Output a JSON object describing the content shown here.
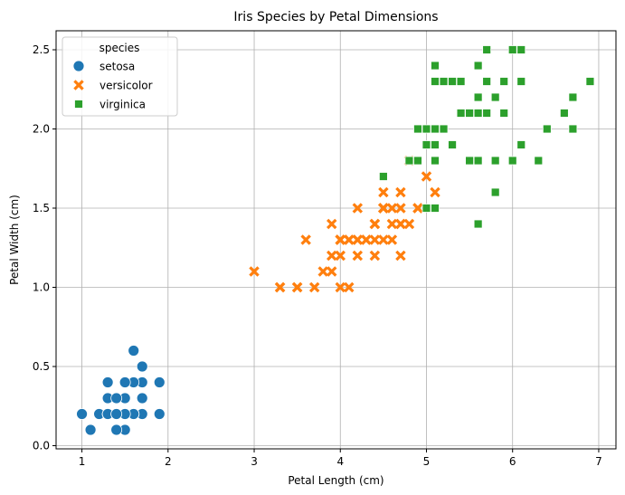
{
  "chart_data": {
    "type": "scatter",
    "title": "Iris Species by Petal Dimensions",
    "xlabel": "Petal Length (cm)",
    "ylabel": "Petal Width (cm)",
    "xlim": [
      0.7,
      7.2
    ],
    "ylim": [
      -0.02,
      2.62
    ],
    "xticks": [
      1,
      2,
      3,
      4,
      5,
      6,
      7
    ],
    "yticks": [
      0.0,
      0.5,
      1.0,
      1.5,
      2.0,
      2.5
    ],
    "grid": true,
    "legend": {
      "title": "species",
      "placement": "top-left"
    },
    "series": [
      {
        "name": "setosa",
        "marker": "circle",
        "color": "#1f77b4",
        "points": [
          [
            1.4,
            0.2
          ],
          [
            1.4,
            0.2
          ],
          [
            1.3,
            0.2
          ],
          [
            1.5,
            0.2
          ],
          [
            1.4,
            0.2
          ],
          [
            1.7,
            0.4
          ],
          [
            1.4,
            0.3
          ],
          [
            1.5,
            0.2
          ],
          [
            1.4,
            0.2
          ],
          [
            1.5,
            0.1
          ],
          [
            1.5,
            0.2
          ],
          [
            1.6,
            0.2
          ],
          [
            1.4,
            0.1
          ],
          [
            1.1,
            0.1
          ],
          [
            1.2,
            0.2
          ],
          [
            1.5,
            0.4
          ],
          [
            1.3,
            0.4
          ],
          [
            1.4,
            0.3
          ],
          [
            1.7,
            0.3
          ],
          [
            1.5,
            0.3
          ],
          [
            1.7,
            0.2
          ],
          [
            1.5,
            0.4
          ],
          [
            1.0,
            0.2
          ],
          [
            1.7,
            0.5
          ],
          [
            1.9,
            0.2
          ],
          [
            1.6,
            0.2
          ],
          [
            1.6,
            0.4
          ],
          [
            1.5,
            0.2
          ],
          [
            1.4,
            0.2
          ],
          [
            1.6,
            0.2
          ],
          [
            1.6,
            0.2
          ],
          [
            1.5,
            0.4
          ],
          [
            1.5,
            0.1
          ],
          [
            1.4,
            0.2
          ],
          [
            1.5,
            0.2
          ],
          [
            1.2,
            0.2
          ],
          [
            1.3,
            0.2
          ],
          [
            1.4,
            0.1
          ],
          [
            1.3,
            0.2
          ],
          [
            1.5,
            0.2
          ],
          [
            1.3,
            0.3
          ],
          [
            1.3,
            0.3
          ],
          [
            1.3,
            0.2
          ],
          [
            1.6,
            0.6
          ],
          [
            1.9,
            0.4
          ],
          [
            1.4,
            0.3
          ],
          [
            1.6,
            0.2
          ],
          [
            1.4,
            0.2
          ],
          [
            1.5,
            0.2
          ],
          [
            1.4,
            0.2
          ]
        ]
      },
      {
        "name": "versicolor",
        "marker": "x",
        "color": "#ff7f0e",
        "points": [
          [
            4.7,
            1.4
          ],
          [
            4.5,
            1.5
          ],
          [
            4.9,
            1.5
          ],
          [
            4.0,
            1.3
          ],
          [
            4.6,
            1.5
          ],
          [
            4.5,
            1.3
          ],
          [
            4.7,
            1.6
          ],
          [
            3.3,
            1.0
          ],
          [
            4.6,
            1.3
          ],
          [
            3.9,
            1.4
          ],
          [
            3.5,
            1.0
          ],
          [
            4.2,
            1.5
          ],
          [
            4.0,
            1.0
          ],
          [
            4.7,
            1.4
          ],
          [
            3.6,
            1.3
          ],
          [
            4.4,
            1.4
          ],
          [
            4.5,
            1.5
          ],
          [
            4.1,
            1.0
          ],
          [
            4.5,
            1.5
          ],
          [
            3.9,
            1.1
          ],
          [
            4.8,
            1.8
          ],
          [
            4.0,
            1.3
          ],
          [
            4.9,
            1.5
          ],
          [
            4.7,
            1.2
          ],
          [
            4.3,
            1.3
          ],
          [
            4.4,
            1.4
          ],
          [
            4.8,
            1.4
          ],
          [
            5.0,
            1.7
          ],
          [
            4.5,
            1.5
          ],
          [
            3.5,
            1.0
          ],
          [
            3.8,
            1.1
          ],
          [
            3.7,
            1.0
          ],
          [
            3.9,
            1.2
          ],
          [
            5.1,
            1.6
          ],
          [
            4.5,
            1.5
          ],
          [
            4.5,
            1.6
          ],
          [
            4.7,
            1.5
          ],
          [
            4.4,
            1.3
          ],
          [
            4.1,
            1.3
          ],
          [
            4.0,
            1.3
          ],
          [
            4.4,
            1.2
          ],
          [
            4.6,
            1.4
          ],
          [
            4.0,
            1.2
          ],
          [
            3.3,
            1.0
          ],
          [
            4.2,
            1.3
          ],
          [
            4.2,
            1.2
          ],
          [
            4.2,
            1.3
          ],
          [
            4.3,
            1.3
          ],
          [
            3.0,
            1.1
          ],
          [
            4.1,
            1.3
          ]
        ]
      },
      {
        "name": "virginica",
        "marker": "square",
        "color": "#2ca02c",
        "points": [
          [
            6.0,
            2.5
          ],
          [
            5.1,
            1.9
          ],
          [
            5.9,
            2.1
          ],
          [
            5.6,
            1.8
          ],
          [
            5.8,
            2.2
          ],
          [
            6.6,
            2.1
          ],
          [
            4.5,
            1.7
          ],
          [
            6.3,
            1.8
          ],
          [
            5.8,
            1.8
          ],
          [
            6.1,
            2.5
          ],
          [
            5.1,
            2.0
          ],
          [
            5.3,
            1.9
          ],
          [
            5.5,
            2.1
          ],
          [
            5.0,
            2.0
          ],
          [
            5.1,
            2.4
          ],
          [
            5.3,
            2.3
          ],
          [
            5.5,
            1.8
          ],
          [
            6.7,
            2.2
          ],
          [
            6.9,
            2.3
          ],
          [
            5.0,
            1.5
          ],
          [
            5.7,
            2.3
          ],
          [
            4.9,
            2.0
          ],
          [
            6.7,
            2.0
          ],
          [
            4.9,
            1.8
          ],
          [
            5.7,
            2.1
          ],
          [
            6.0,
            1.8
          ],
          [
            4.8,
            1.8
          ],
          [
            4.9,
            1.8
          ],
          [
            5.6,
            2.1
          ],
          [
            5.8,
            1.6
          ],
          [
            6.1,
            1.9
          ],
          [
            6.4,
            2.0
          ],
          [
            5.6,
            2.2
          ],
          [
            5.1,
            1.5
          ],
          [
            5.6,
            1.4
          ],
          [
            6.1,
            2.3
          ],
          [
            5.6,
            2.4
          ],
          [
            5.5,
            1.8
          ],
          [
            4.8,
            1.8
          ],
          [
            5.4,
            2.1
          ],
          [
            5.6,
            2.4
          ],
          [
            5.1,
            2.3
          ],
          [
            5.1,
            1.9
          ],
          [
            5.9,
            2.3
          ],
          [
            5.7,
            2.5
          ],
          [
            5.2,
            2.3
          ],
          [
            5.0,
            1.9
          ],
          [
            5.2,
            2.0
          ],
          [
            5.4,
            2.3
          ],
          [
            5.1,
            1.8
          ]
        ]
      }
    ]
  }
}
